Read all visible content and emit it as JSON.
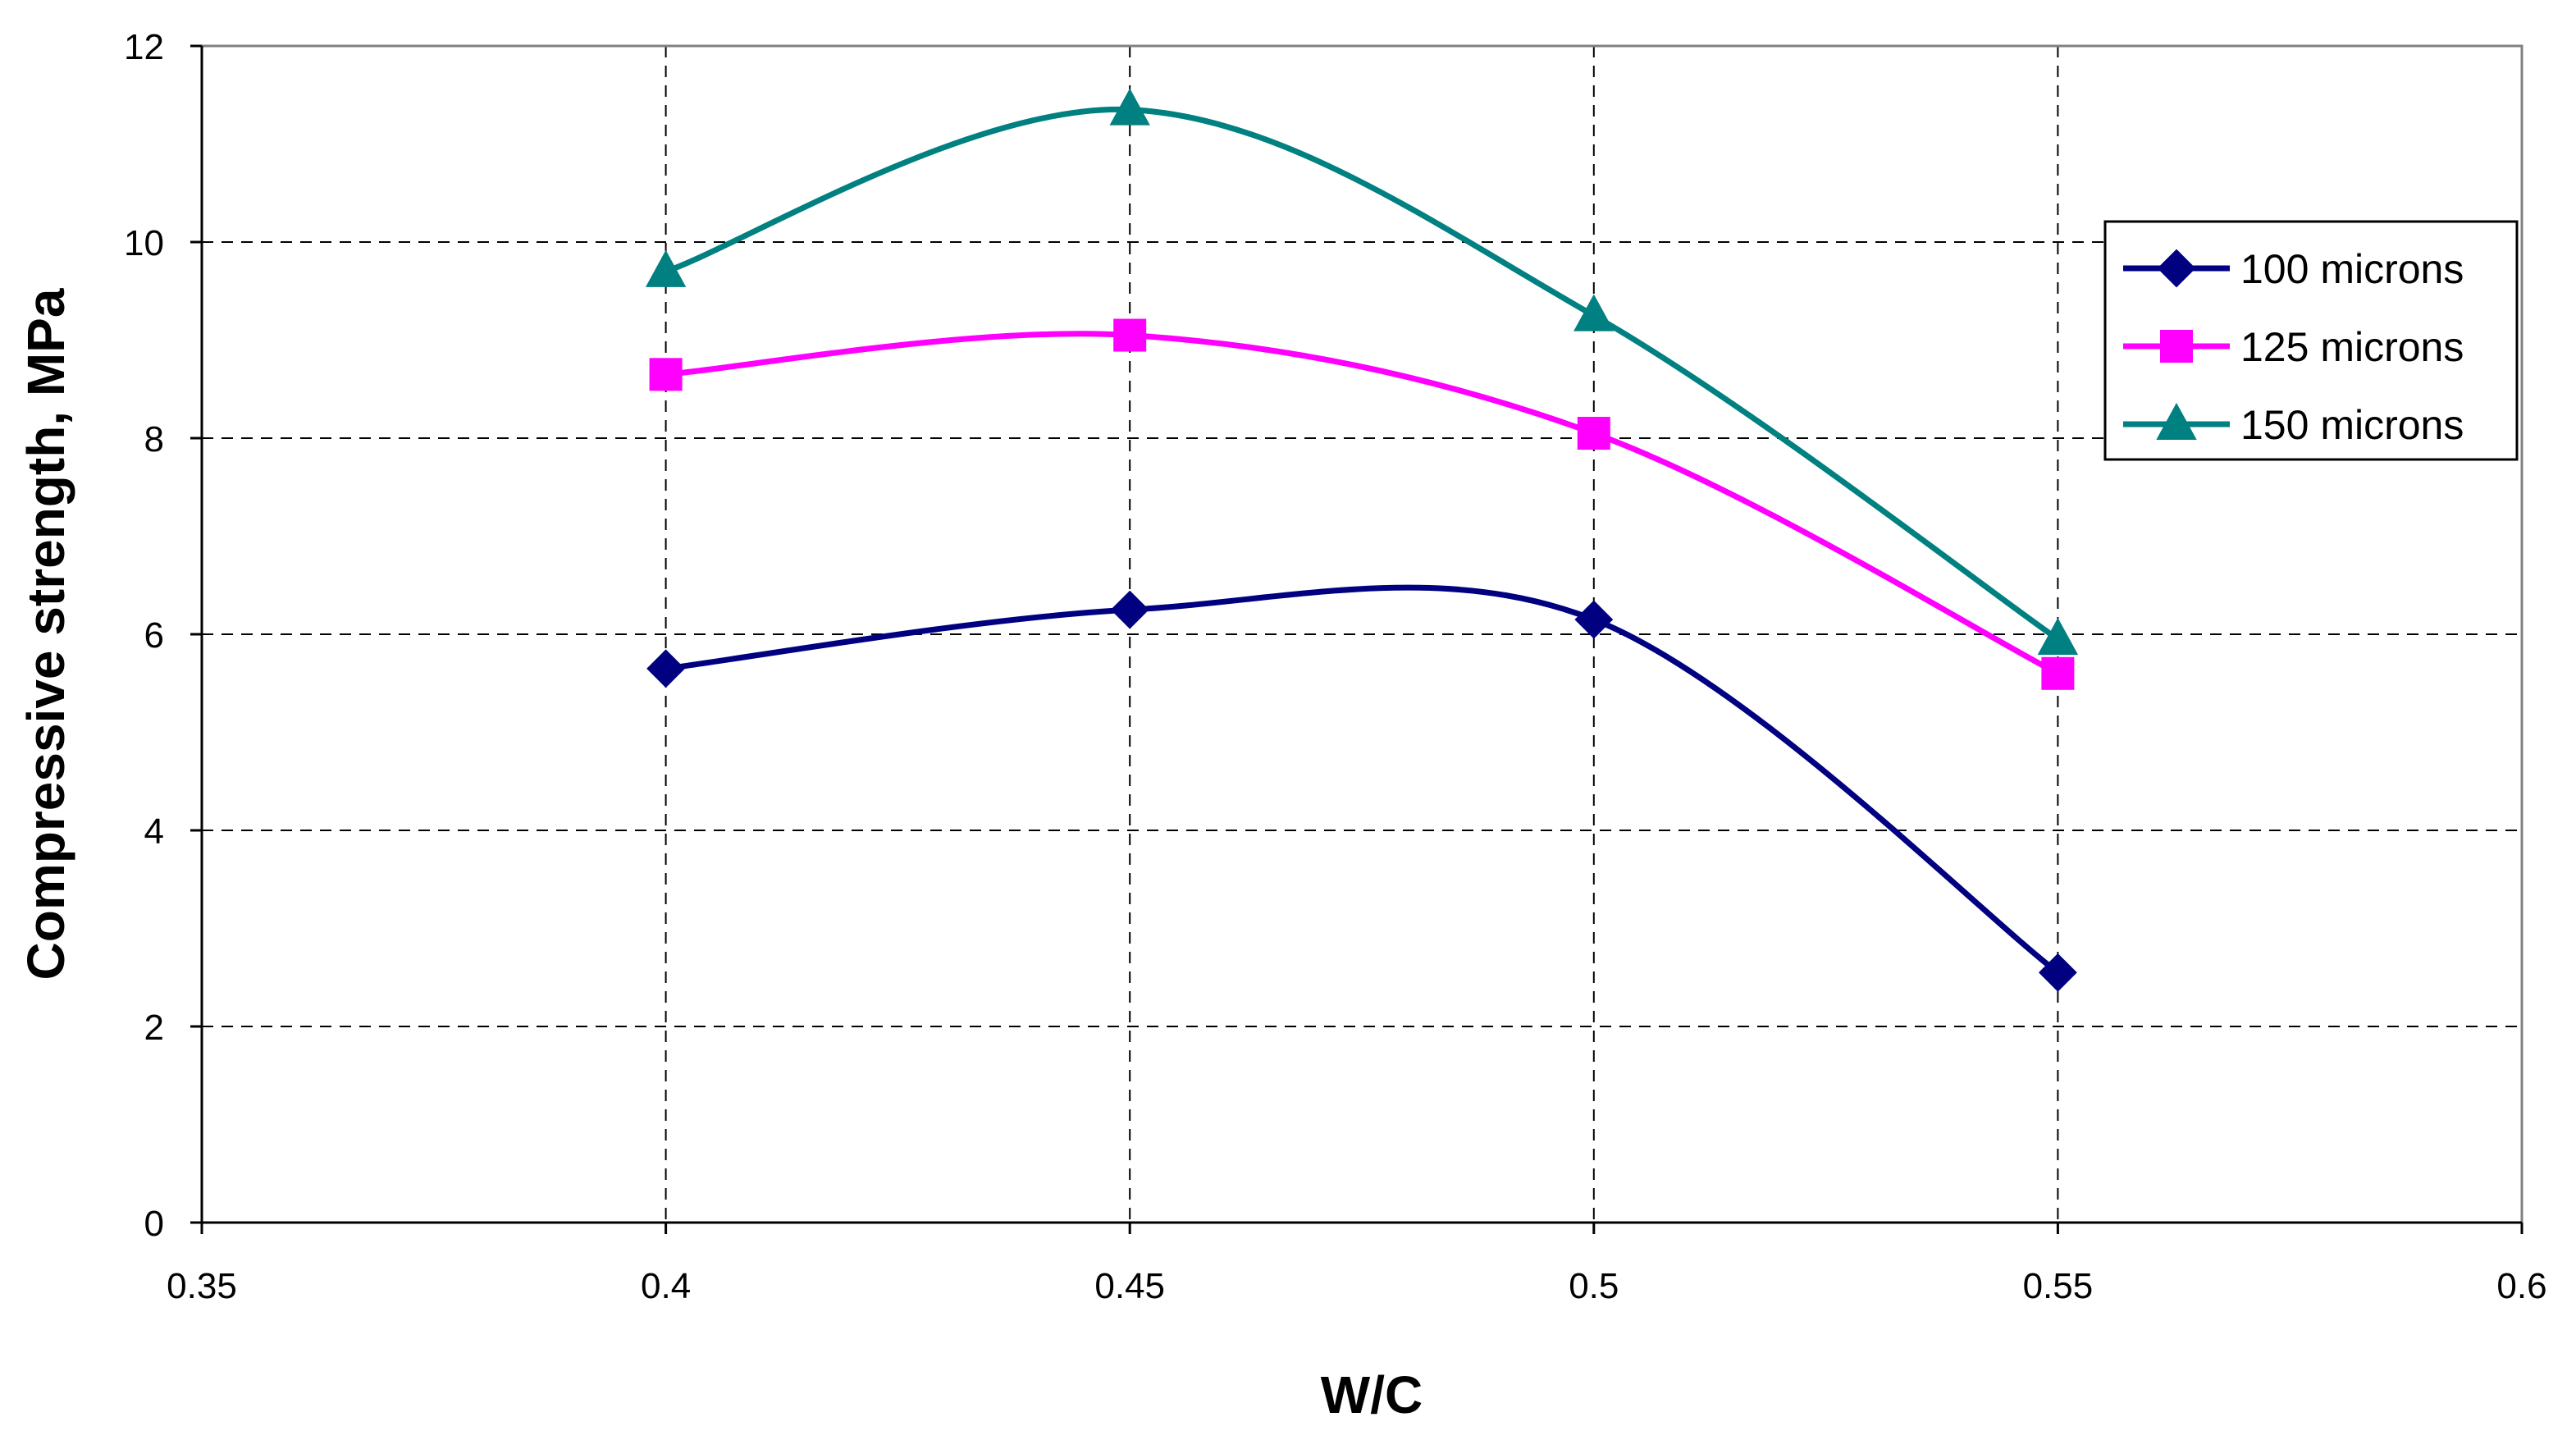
{
  "chart_data": {
    "type": "line",
    "title": "",
    "xlabel": "W/C",
    "ylabel": "Compressive strength, MPa",
    "xlim": [
      0.35,
      0.6
    ],
    "ylim": [
      0,
      12
    ],
    "x_ticks": [
      0.35,
      0.4,
      0.45,
      0.5,
      0.55,
      0.6
    ],
    "y_ticks": [
      0,
      2,
      4,
      6,
      8,
      10,
      12
    ],
    "x_tick_labels": [
      "0.35",
      "0.4",
      "0.45",
      "0.5",
      "0.55",
      "0.6"
    ],
    "y_tick_labels": [
      "0",
      "2",
      "4",
      "6",
      "8",
      "10",
      "12"
    ],
    "grid": "dashed",
    "legend_position": "right",
    "x": [
      0.4,
      0.45,
      0.5,
      0.55
    ],
    "series": [
      {
        "name": "100 microns",
        "values": [
          5.65,
          6.25,
          6.15,
          2.55
        ],
        "color": "#000080",
        "marker": "diamond"
      },
      {
        "name": "125 microns",
        "values": [
          8.65,
          9.05,
          8.05,
          5.6
        ],
        "color": "#FF00FF",
        "marker": "square"
      },
      {
        "name": "150 microns",
        "values": [
          9.7,
          11.35,
          9.25,
          5.95
        ],
        "color": "#008080",
        "marker": "triangle"
      }
    ]
  }
}
